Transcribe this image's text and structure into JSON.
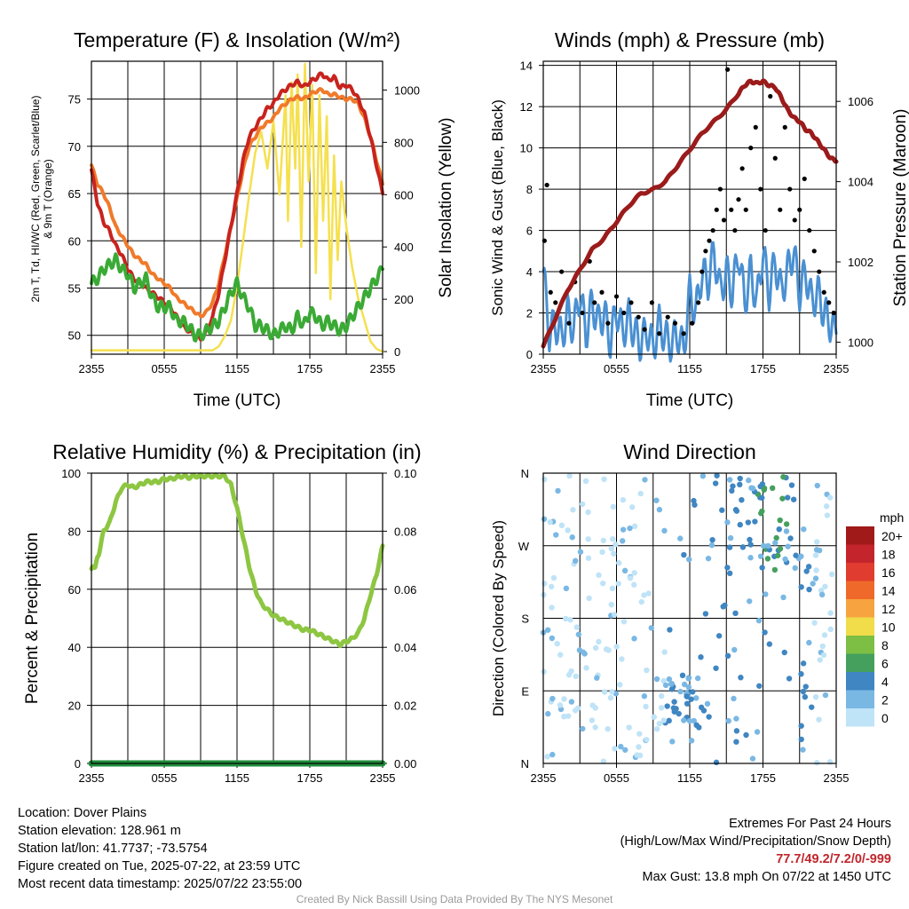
{
  "chart_data": [
    {
      "type": "line",
      "title": "Temperature (F) & Insolation (W/m²)",
      "xlabel": "Time (UTC)",
      "ylabel": "2m T, Td, HI/WC (Red, Green, Scarlet/Blue) & 9m T (Orange)",
      "y2label": "Solar Insolation (Yellow)",
      "xticks": [
        "2355",
        "0555",
        "1155",
        "1755",
        "2355"
      ],
      "x_hours": [
        0,
        3,
        6,
        9,
        12,
        15,
        18,
        21,
        24
      ],
      "ylim": [
        48,
        79
      ],
      "yticks": [
        50,
        55,
        60,
        65,
        70,
        75
      ],
      "y2lim": [
        -10,
        1110
      ],
      "y2ticks": [
        0,
        200,
        400,
        600,
        800,
        1000
      ],
      "series": [
        {
          "name": "2m T",
          "axis": "left",
          "color": "#c8231e",
          "x": [
            0,
            0.5,
            1,
            1.5,
            2,
            2.5,
            3,
            3.5,
            4,
            4.5,
            5,
            5.5,
            6,
            6.5,
            7,
            7.5,
            8,
            8.5,
            9,
            9.5,
            10,
            10.5,
            11,
            11.5,
            12,
            12.5,
            13,
            13.5,
            14,
            14.5,
            15,
            15.5,
            16,
            16.5,
            17,
            17.5,
            18,
            18.5,
            19,
            19.5,
            20,
            20.5,
            21,
            21.5,
            22,
            22.5,
            23,
            23.5,
            24
          ],
          "y": [
            67.5,
            64,
            62,
            61,
            59.5,
            58.5,
            57,
            56,
            55.5,
            55,
            54.5,
            54,
            53.5,
            53,
            52,
            51,
            50.5,
            50,
            49.5,
            50.5,
            52,
            54.5,
            58,
            61.5,
            65,
            68.5,
            71,
            72,
            73,
            74,
            74.5,
            75.5,
            76,
            76.5,
            76.8,
            76.3,
            76.8,
            77.2,
            77.7,
            77,
            77.3,
            76.2,
            76.5,
            76,
            75,
            73.5,
            71,
            68,
            65
          ]
        },
        {
          "name": "9m T",
          "axis": "left",
          "color": "#f07a2a",
          "x": [
            0,
            0.5,
            1,
            1.5,
            2,
            2.5,
            3,
            3.5,
            4,
            4.5,
            5,
            5.5,
            6,
            6.5,
            7,
            7.5,
            8,
            8.5,
            9,
            9.5,
            10,
            10.5,
            11,
            11.5,
            12,
            12.5,
            13,
            13.5,
            14,
            14.5,
            15,
            15.5,
            16,
            16.5,
            17,
            17.5,
            18,
            18.5,
            19,
            19.5,
            20,
            20.5,
            21,
            21.5,
            22,
            22.5,
            23,
            23.5,
            24
          ],
          "y": [
            68,
            66,
            65,
            63.5,
            61.5,
            60.5,
            59.5,
            58.5,
            58,
            57.5,
            56.5,
            56,
            55.5,
            55,
            54,
            53.5,
            53,
            52.5,
            52,
            52.5,
            53.5,
            55.5,
            58.5,
            61.5,
            64.5,
            67.5,
            70,
            71,
            72,
            72.5,
            73,
            74,
            74.5,
            75,
            75.2,
            75,
            75.5,
            75.8,
            76,
            75.5,
            75.5,
            75.2,
            75,
            75,
            74.5,
            73,
            71,
            68.5,
            66
          ]
        },
        {
          "name": "Td",
          "axis": "left",
          "color": "#3aaa35",
          "x": [
            0,
            0.5,
            1,
            1.5,
            2,
            2.5,
            3,
            3.5,
            4,
            4.5,
            5,
            5.5,
            6,
            6.5,
            7,
            7.5,
            8,
            8.5,
            9,
            9.5,
            10,
            10.5,
            11,
            11.5,
            12,
            12.5,
            13,
            13.5,
            14,
            14.5,
            15,
            15.5,
            16,
            16.5,
            17,
            17.5,
            18,
            18.5,
            19,
            19.5,
            20,
            20.5,
            21,
            21.5,
            22,
            22.5,
            23,
            23.5,
            24
          ],
          "y": [
            55.5,
            56,
            57,
            57.5,
            58,
            57,
            56.5,
            55,
            55.5,
            56,
            54,
            53,
            53,
            53,
            51.5,
            51.5,
            51,
            50,
            50,
            50.5,
            51,
            51.5,
            53,
            54.5,
            55.5,
            54,
            53,
            51,
            51,
            50.5,
            50,
            50.5,
            51,
            50.5,
            52,
            51,
            52.5,
            52,
            51,
            51.5,
            51,
            50.5,
            51,
            52,
            53,
            54,
            55,
            56,
            57
          ]
        },
        {
          "name": "Solar Insolation",
          "axis": "right",
          "color": "#f5e04f",
          "x": [
            0,
            1,
            2,
            3,
            4,
            5,
            6,
            7,
            8,
            9,
            10,
            10.5,
            11,
            11.5,
            12,
            12.5,
            13,
            13.5,
            14,
            14.5,
            15,
            15.5,
            16,
            16.2,
            16.5,
            16.8,
            17,
            17.3,
            17.6,
            17.9,
            18.2,
            18.5,
            18.8,
            19.1,
            19.4,
            19.7,
            20,
            20.3,
            20.6,
            21,
            21.5,
            22,
            22.5,
            23,
            23.5,
            24
          ],
          "y": [
            5,
            5,
            5,
            5,
            5,
            5,
            5,
            5,
            5,
            5,
            5,
            20,
            60,
            120,
            250,
            420,
            600,
            760,
            840,
            700,
            880,
            600,
            980,
            500,
            1030,
            700,
            1060,
            400,
            1100,
            650,
            1020,
            300,
            980,
            500,
            900,
            200,
            750,
            350,
            650,
            480,
            320,
            200,
            120,
            40,
            10,
            0
          ]
        }
      ]
    },
    {
      "type": "line",
      "title": "Winds (mph) & Pressure (mb)",
      "xlabel": "Time (UTC)",
      "ylabel": "Sonic Wind & Gust (Blue, Black)",
      "y2label": "Station Pressure (Maroon)",
      "xticks": [
        "2355",
        "0555",
        "1155",
        "1755",
        "2355"
      ],
      "ylim": [
        0,
        14.2
      ],
      "yticks": [
        0,
        2,
        4,
        6,
        8,
        10,
        12,
        14
      ],
      "y2lim": [
        999.7,
        1007.0
      ],
      "y2ticks": [
        1000,
        1002,
        1004,
        1006
      ],
      "series": [
        {
          "name": "Sonic Wind",
          "axis": "left",
          "color": "#4a90d2",
          "x": [
            0,
            0.5,
            1,
            1.5,
            2,
            2.5,
            3,
            3.5,
            4,
            4.5,
            5,
            5.5,
            6,
            6.5,
            7,
            7.5,
            8,
            8.5,
            9,
            9.5,
            10,
            10.5,
            11,
            11.5,
            12,
            12.5,
            13,
            13.5,
            14,
            14.5,
            15,
            15.5,
            16,
            16.5,
            17,
            17.5,
            18,
            18.5,
            19,
            19.5,
            20,
            20.5,
            21,
            21.5,
            22,
            22.5,
            23,
            23.5,
            24
          ],
          "y": [
            4,
            1,
            1.5,
            0.8,
            2,
            1.2,
            3,
            1,
            2.5,
            1.5,
            2,
            0.6,
            2.2,
            1,
            1.8,
            1,
            0.5,
            1.2,
            0.3,
            1.5,
            0.8,
            0.5,
            1,
            0.2,
            3,
            2,
            4,
            3.5,
            5,
            3,
            4,
            3,
            5,
            2.5,
            4,
            2.5,
            5,
            3,
            4.5,
            3,
            4,
            5,
            3,
            4,
            2.5,
            3,
            2,
            1.5,
            1
          ]
        },
        {
          "name": "Gust",
          "axis": "left",
          "color": "#000000",
          "mode": "points",
          "x": [
            0.1,
            0.3,
            0.6,
            1.0,
            1.5,
            2.1,
            2.6,
            3.2,
            3.8,
            4.2,
            4.8,
            5.3,
            6.0,
            6.6,
            7.2,
            7.8,
            8.3,
            8.9,
            9.5,
            10.2,
            10.8,
            11.5,
            12.2,
            12.7,
            13.0,
            13.3,
            13.6,
            13.9,
            14.2,
            14.5,
            14.8,
            15.1,
            15.4,
            15.7,
            16.0,
            16.3,
            16.6,
            17.0,
            17.4,
            17.8,
            18.2,
            18.6,
            19.0,
            19.4,
            19.8,
            20.2,
            20.6,
            21.0,
            21.4,
            21.8,
            22.2,
            22.6,
            23.0,
            23.4,
            23.8
          ],
          "y": [
            5.5,
            8.2,
            3,
            2.5,
            4,
            1.5,
            3.5,
            2,
            4.5,
            2.5,
            3,
            1.5,
            2.8,
            2,
            2.5,
            1.8,
            1.2,
            2.5,
            1,
            1.8,
            1.5,
            1,
            1.5,
            2.5,
            4,
            5,
            5.5,
            6,
            7,
            8,
            6.5,
            13.8,
            7,
            6,
            7.5,
            9,
            7,
            10,
            11,
            8,
            6,
            12.5,
            9.5,
            7,
            11,
            8,
            6.5,
            7,
            8.5,
            6,
            5,
            4,
            3,
            2.5,
            2
          ]
        },
        {
          "name": "Station Pressure",
          "axis": "right",
          "color": "#9b1b1b",
          "x": [
            0,
            1,
            2,
            3,
            4,
            5,
            6,
            7,
            8,
            9,
            10,
            11,
            12,
            13,
            14,
            15,
            16,
            16.5,
            17,
            17.5,
            18,
            18.5,
            19,
            19.5,
            20,
            20.5,
            21,
            21.5,
            22,
            22.5,
            23,
            23.5,
            24
          ],
          "y": [
            999.9,
            1000.6,
            1001.3,
            1001.8,
            1002.3,
            1002.6,
            1003.0,
            1003.4,
            1003.7,
            1003.8,
            1004.0,
            1004.4,
            1004.8,
            1005.2,
            1005.5,
            1005.8,
            1006.2,
            1006.4,
            1006.5,
            1006.45,
            1006.5,
            1006.4,
            1006.35,
            1006.1,
            1005.8,
            1005.6,
            1005.5,
            1005.3,
            1005.2,
            1005.0,
            1004.8,
            1004.6,
            1004.5
          ]
        }
      ]
    },
    {
      "type": "line",
      "title": "Relative Humidity (%) & Precipitation (in)",
      "ylabel": "Percent & Precipitation",
      "xticks": [
        "2355",
        "0555",
        "1155",
        "1755",
        "2355"
      ],
      "ylim": [
        0,
        100
      ],
      "yticks": [
        0,
        20,
        40,
        60,
        80,
        100
      ],
      "y2lim": [
        0,
        0.1
      ],
      "y2ticks": [
        "0.00",
        "0.02",
        "0.04",
        "0.06",
        "0.08",
        "0.10"
      ],
      "series": [
        {
          "name": "Relative Humidity",
          "axis": "left",
          "color": "#8dc641",
          "x": [
            0,
            0.3,
            0.6,
            1,
            1.5,
            2,
            2.5,
            3,
            3.5,
            4,
            4.5,
            5,
            5.5,
            6,
            6.5,
            7,
            7.5,
            8,
            8.5,
            9,
            9.5,
            10,
            10.5,
            11,
            11.5,
            12,
            12.5,
            13,
            13.5,
            14,
            14.5,
            15,
            15.5,
            16,
            16.5,
            17,
            17.5,
            18,
            18.5,
            19,
            19.5,
            20,
            20.5,
            21,
            21.5,
            22,
            22.5,
            23,
            23.5,
            24
          ],
          "y": [
            67,
            68,
            72,
            80,
            83,
            90,
            95,
            96,
            95,
            96,
            97,
            97,
            97,
            98,
            98,
            98.5,
            99,
            98.5,
            99,
            99,
            99,
            99,
            99,
            99,
            96,
            88,
            78,
            68,
            60,
            55,
            53,
            51,
            50,
            49,
            48,
            47,
            46,
            46,
            45,
            44,
            43,
            42,
            41,
            42,
            43,
            45,
            50,
            58,
            65,
            75
          ]
        },
        {
          "name": "Precipitation",
          "axis": "right",
          "color": "#1e8c3a",
          "x": [
            0,
            24
          ],
          "y": [
            0,
            0
          ]
        }
      ]
    },
    {
      "type": "scatter",
      "title": "Wind Direction",
      "ylabel": "Direction (Colored By Speed)",
      "xticks": [
        "2355",
        "0555",
        "1155",
        "1755",
        "2355"
      ],
      "yticks": [
        "N",
        "E",
        "S",
        "W",
        "N"
      ],
      "ylim": [
        0,
        360
      ],
      "legend": {
        "title": "mph",
        "labels": [
          "20+",
          "18",
          "16",
          "14",
          "12",
          "10",
          "8",
          "6",
          "4",
          "2",
          "0"
        ],
        "colors": [
          "#a01a1a",
          "#c4242b",
          "#e03c2f",
          "#ef6a2a",
          "#f7a440",
          "#f1dc4a",
          "#7dbe45",
          "#45a05e",
          "#3f86c2",
          "#7ab8e4",
          "#bfe3f7"
        ]
      }
    }
  ],
  "info": {
    "location": "Location: Dover Plains",
    "elevation": "Station elevation: 128.961 m",
    "latlon": "Station lat/lon: 41.7737; -73.5754",
    "created": "Figure created on Tue, 2025-07-22, at 23:59 UTC",
    "recent": "Most recent data timestamp: 2025/07/22 23:55:00"
  },
  "extremes": {
    "title": "Extremes For Past 24 Hours",
    "subtitle": "(High/Low/Max Wind/Precipitation/Snow Depth)",
    "values": "77.7/49.2/7.2/0/-999",
    "gust": "Max Gust: 13.8 mph On 07/22 at 1450 UTC"
  },
  "credit": "Created By Nick Bassill Using Data Provided By The NYS Mesonet"
}
